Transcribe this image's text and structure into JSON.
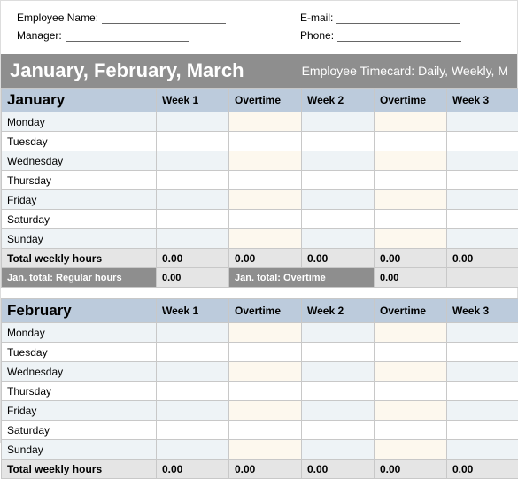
{
  "form": {
    "employee_name_label": "Employee Name:",
    "email_label": "E-mail:",
    "manager_label": "Manager:",
    "phone_label": "Phone:"
  },
  "ribbon": {
    "left": "January, February, March",
    "right": "Employee Timecard: Daily, Weekly, M"
  },
  "columns": {
    "week1": "Week 1",
    "ot1": "Overtime",
    "week2": "Week 2",
    "ot2": "Overtime",
    "week3": "Week 3"
  },
  "days": [
    "Monday",
    "Tuesday",
    "Wednesday",
    "Thursday",
    "Friday",
    "Saturday",
    "Sunday"
  ],
  "totals_label": "Total weekly hours",
  "zero": "0.00",
  "january": {
    "title": "January",
    "summary_reg_label": "Jan. total: Regular hours",
    "summary_reg_value": "0.00",
    "summary_ot_label": "Jan. total: Overtime",
    "summary_ot_value": "0.00"
  },
  "february": {
    "title": "February"
  },
  "colors": {
    "ribbon_bg": "#8e8e8e",
    "header_bg": "#bccbdc",
    "day_even": "#eef3f6",
    "ot_tint": "#fdf8ee",
    "totals_bg": "#e5e5e5",
    "border": "#c8c8c8"
  }
}
